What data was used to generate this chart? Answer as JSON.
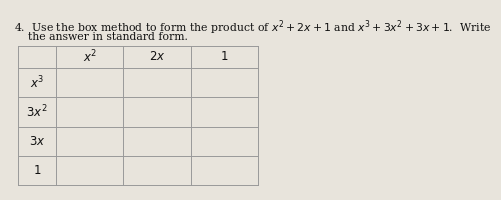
{
  "title_line1": "4.  Use the box method to form the product of $x^2+2x+1$ and $x^3+3x^2+3x+1$.  Write",
  "title_line2": "    the answer in standard form.",
  "col_headers": [
    "$x^2$",
    "$2x$",
    "$1$"
  ],
  "row_headers": [
    "$x^3$",
    "$3x^2$",
    "$3x$",
    "$1$"
  ],
  "bg_color": "#e8e4dc",
  "line_color": "#999999",
  "text_color": "#111111",
  "font_size": 8.5,
  "title_font_size": 7.8
}
